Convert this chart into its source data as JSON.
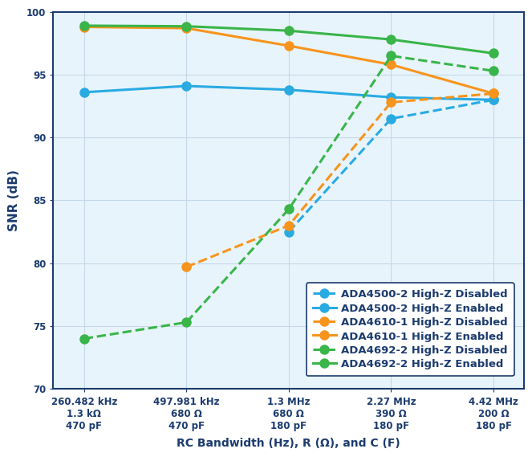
{
  "x_positions": [
    0,
    1,
    2,
    3,
    4
  ],
  "x_tick_labels": [
    "260.482 kHz\n1.3 kΩ\n470 pF",
    "497.981 kHz\n680 Ω\n470 pF",
    "1.3 MHz\n680 Ω\n180 pF",
    "2.27 MHz\n390 Ω\n180 pF",
    "4.42 MHz\n200 Ω\n180 pF"
  ],
  "xlabel": "RC Bandwidth (Hz), R (Ω), and C (F)",
  "ylabel": "SNR (dB)",
  "ylim": [
    70,
    100
  ],
  "yticks": [
    70,
    75,
    80,
    85,
    90,
    95,
    100
  ],
  "series": [
    {
      "label": "ADA4500-2 High-Z Disabled",
      "color": "#29ABE2",
      "linestyle": "dashed",
      "marker": "o",
      "data": [
        null,
        null,
        82.5,
        91.5,
        93.0
      ]
    },
    {
      "label": "ADA4500-2 High-Z Enabled",
      "color": "#29ABE2",
      "linestyle": "solid",
      "marker": "o",
      "data": [
        93.6,
        94.1,
        93.8,
        93.2,
        93.0
      ]
    },
    {
      "label": "ADA4610-1 High-Z Disabled",
      "color": "#F7941D",
      "linestyle": "dashed",
      "marker": "o",
      "data": [
        null,
        79.7,
        83.0,
        92.8,
        93.5
      ]
    },
    {
      "label": "ADA4610-1 High-Z Enabled",
      "color": "#F7941D",
      "linestyle": "solid",
      "marker": "o",
      "data": [
        98.8,
        98.7,
        97.3,
        95.8,
        93.5
      ]
    },
    {
      "label": "ADA4692-2 High-Z Disabled",
      "color": "#39B54A",
      "linestyle": "dashed",
      "marker": "o",
      "data": [
        74.0,
        75.3,
        84.3,
        96.5,
        95.3
      ]
    },
    {
      "label": "ADA4692-2 High-Z Enabled",
      "color": "#39B54A",
      "linestyle": "solid",
      "marker": "o",
      "data": [
        98.9,
        98.85,
        98.5,
        97.8,
        96.7
      ]
    }
  ],
  "grid_color": "#C5D8E8",
  "bg_color": "#E8F4FC",
  "axis_color": "#1B3B6F",
  "legend_text_color": "#1B3B6F",
  "line_width": 2.2,
  "marker_size": 8,
  "legend_fontsize": 9.5,
  "tick_fontsize": 8.5,
  "xlabel_fontsize": 10,
  "ylabel_fontsize": 11
}
